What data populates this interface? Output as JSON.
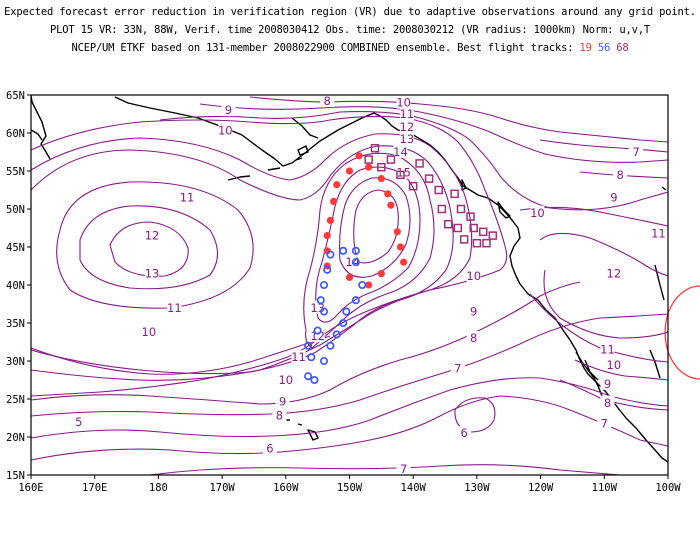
{
  "header": {
    "line1": "Expected forecast error reduction in verification region (VR) due to adaptive observations around any grid point.",
    "line2": "PLOT 15 VR: 33N, 88W, Verif. time 2008030412 Obs. time: 2008030212 (VR radius: 1000km) Norm: u,v,T",
    "line3_prefix": "NCEP/UM ETKF based on 131-member 2008022900 COMBINED ensemble.  Best flight tracks:",
    "track_ids": [
      {
        "id": "19",
        "color": "#ff3a3a"
      },
      {
        "id": "56",
        "color": "#3a5aff"
      },
      {
        "id": "68",
        "color": "#a0307a"
      }
    ]
  },
  "map": {
    "lon_ticks": [
      "160E",
      "170E",
      "180",
      "170W",
      "160W",
      "150W",
      "140W",
      "130W",
      "120W",
      "110W",
      "100W"
    ],
    "lat_ticks": [
      "65N",
      "60N",
      "55N",
      "50N",
      "45N",
      "40N",
      "35N",
      "30N",
      "25N",
      "20N",
      "15N"
    ],
    "contour_color": "#8a1a8a",
    "contour_labels": [
      {
        "t": "8",
        "lon": -153.5,
        "lat": 64.2
      },
      {
        "t": "9",
        "lon": -169.0,
        "lat": 63.0
      },
      {
        "t": "10",
        "lon": -169.5,
        "lat": 60.3
      },
      {
        "t": "11",
        "lon": -175.5,
        "lat": 51.5
      },
      {
        "t": "12",
        "lon": 179.0,
        "lat": 46.5
      },
      {
        "t": "13",
        "lon": 179.0,
        "lat": 41.5
      },
      {
        "t": "11",
        "lon": -177.5,
        "lat": 37.0
      },
      {
        "t": "10",
        "lon": 178.5,
        "lat": 33.8
      },
      {
        "t": "12",
        "lon": -155.0,
        "lat": 33.3
      },
      {
        "t": "13",
        "lon": -155.0,
        "lat": 37.0
      },
      {
        "t": "14",
        "lon": -149.5,
        "lat": 43.0
      },
      {
        "t": "11",
        "lon": -158.0,
        "lat": 30.5
      },
      {
        "t": "10",
        "lon": -160.0,
        "lat": 27.5
      },
      {
        "t": "9",
        "lon": -160.5,
        "lat": 24.7
      },
      {
        "t": "8",
        "lon": -161.0,
        "lat": 22.8
      },
      {
        "t": "5",
        "lon": 167.5,
        "lat": 22.0
      },
      {
        "t": "6",
        "lon": -162.5,
        "lat": 18.5
      },
      {
        "t": "7",
        "lon": -141.5,
        "lat": 15.8
      },
      {
        "t": "10",
        "lon": -141.5,
        "lat": 64.0
      },
      {
        "t": "11",
        "lon": -141.0,
        "lat": 62.5
      },
      {
        "t": "12",
        "lon": -141.0,
        "lat": 60.8
      },
      {
        "t": "13",
        "lon": -141.0,
        "lat": 59.2
      },
      {
        "t": "14",
        "lon": -142.0,
        "lat": 57.5
      },
      {
        "t": "15",
        "lon": -141.5,
        "lat": 54.8
      },
      {
        "t": "10",
        "lon": -120.5,
        "lat": 49.5
      },
      {
        "t": "10",
        "lon": -130.5,
        "lat": 41.2
      },
      {
        "t": "9",
        "lon": -130.5,
        "lat": 36.5
      },
      {
        "t": "8",
        "lon": -130.5,
        "lat": 33.0
      },
      {
        "t": "7",
        "lon": -133.0,
        "lat": 29.0
      },
      {
        "t": "6",
        "lon": -132.0,
        "lat": 20.5
      },
      {
        "t": "7",
        "lon": -105.0,
        "lat": 57.5
      },
      {
        "t": "8",
        "lon": -107.5,
        "lat": 54.5
      },
      {
        "t": "9",
        "lon": -108.5,
        "lat": 51.5
      },
      {
        "t": "11",
        "lon": -101.5,
        "lat": 46.8
      },
      {
        "t": "12",
        "lon": -108.5,
        "lat": 41.5
      },
      {
        "t": "11",
        "lon": -109.5,
        "lat": 31.5
      },
      {
        "t": "10",
        "lon": -108.5,
        "lat": 29.5
      },
      {
        "t": "9",
        "lon": -109.5,
        "lat": 27.0
      },
      {
        "t": "8",
        "lon": -109.5,
        "lat": 24.5
      },
      {
        "t": "7",
        "lon": -110.0,
        "lat": 21.8
      }
    ],
    "track_19": [
      {
        "lon": -148.5,
        "lat": 57.0
      },
      {
        "lon": -150.0,
        "lat": 55.0
      },
      {
        "lon": -152.0,
        "lat": 53.2
      },
      {
        "lon": -152.5,
        "lat": 51.0
      },
      {
        "lon": -153.0,
        "lat": 48.5
      },
      {
        "lon": -153.5,
        "lat": 46.5
      },
      {
        "lon": -153.5,
        "lat": 44.5
      },
      {
        "lon": -153.5,
        "lat": 42.5
      },
      {
        "lon": -150.0,
        "lat": 41.0
      },
      {
        "lon": -147.0,
        "lat": 40.0
      },
      {
        "lon": -145.0,
        "lat": 41.5
      },
      {
        "lon": -141.5,
        "lat": 43.0
      },
      {
        "lon": -142.0,
        "lat": 45.0
      },
      {
        "lon": -142.5,
        "lat": 47.0
      },
      {
        "lon": -143.5,
        "lat": 50.5
      },
      {
        "lon": -144.0,
        "lat": 52.0
      },
      {
        "lon": -145.0,
        "lat": 54.0
      },
      {
        "lon": -147.0,
        "lat": 55.5
      }
    ],
    "track_56": [
      {
        "lon": -156.5,
        "lat": 28.0
      },
      {
        "lon": -155.5,
        "lat": 27.5
      },
      {
        "lon": -154.0,
        "lat": 30.0
      },
      {
        "lon": -156.0,
        "lat": 30.5
      },
      {
        "lon": -156.5,
        "lat": 32.0
      },
      {
        "lon": -155.0,
        "lat": 34.0
      },
      {
        "lon": -153.0,
        "lat": 32.0
      },
      {
        "lon": -152.0,
        "lat": 33.5
      },
      {
        "lon": -151.0,
        "lat": 35.0
      },
      {
        "lon": -150.5,
        "lat": 36.5
      },
      {
        "lon": -149.0,
        "lat": 38.0
      },
      {
        "lon": -148.0,
        "lat": 40.0
      },
      {
        "lon": -154.0,
        "lat": 36.5
      },
      {
        "lon": -154.5,
        "lat": 38.0
      },
      {
        "lon": -154.0,
        "lat": 40.0
      },
      {
        "lon": -153.5,
        "lat": 42.0
      },
      {
        "lon": -153.0,
        "lat": 44.0
      },
      {
        "lon": -151.0,
        "lat": 44.5
      },
      {
        "lon": -149.0,
        "lat": 44.5
      },
      {
        "lon": -149.0,
        "lat": 43.0
      }
    ],
    "track_68": [
      {
        "lon": -146.0,
        "lat": 58.0
      },
      {
        "lon": -147.0,
        "lat": 56.5
      },
      {
        "lon": -145.0,
        "lat": 55.5
      },
      {
        "lon": -143.5,
        "lat": 56.5
      },
      {
        "lon": -142.0,
        "lat": 54.5
      },
      {
        "lon": -140.0,
        "lat": 53.0
      },
      {
        "lon": -139.0,
        "lat": 56.0
      },
      {
        "lon": -137.5,
        "lat": 54.0
      },
      {
        "lon": -136.0,
        "lat": 52.5
      },
      {
        "lon": -135.5,
        "lat": 50.0
      },
      {
        "lon": -133.5,
        "lat": 52.0
      },
      {
        "lon": -132.5,
        "lat": 50.0
      },
      {
        "lon": -131.0,
        "lat": 49.0
      },
      {
        "lon": -130.5,
        "lat": 47.5
      },
      {
        "lon": -129.0,
        "lat": 47.0
      },
      {
        "lon": -133.0,
        "lat": 47.5
      },
      {
        "lon": -132.0,
        "lat": 46.0
      },
      {
        "lon": -130.0,
        "lat": 45.5
      },
      {
        "lon": -128.5,
        "lat": 45.5
      },
      {
        "lon": -127.5,
        "lat": 46.5
      },
      {
        "lon": -134.5,
        "lat": 48.0
      }
    ],
    "vr_circle_color": "#ff3a3a",
    "land_color": "#000000"
  }
}
